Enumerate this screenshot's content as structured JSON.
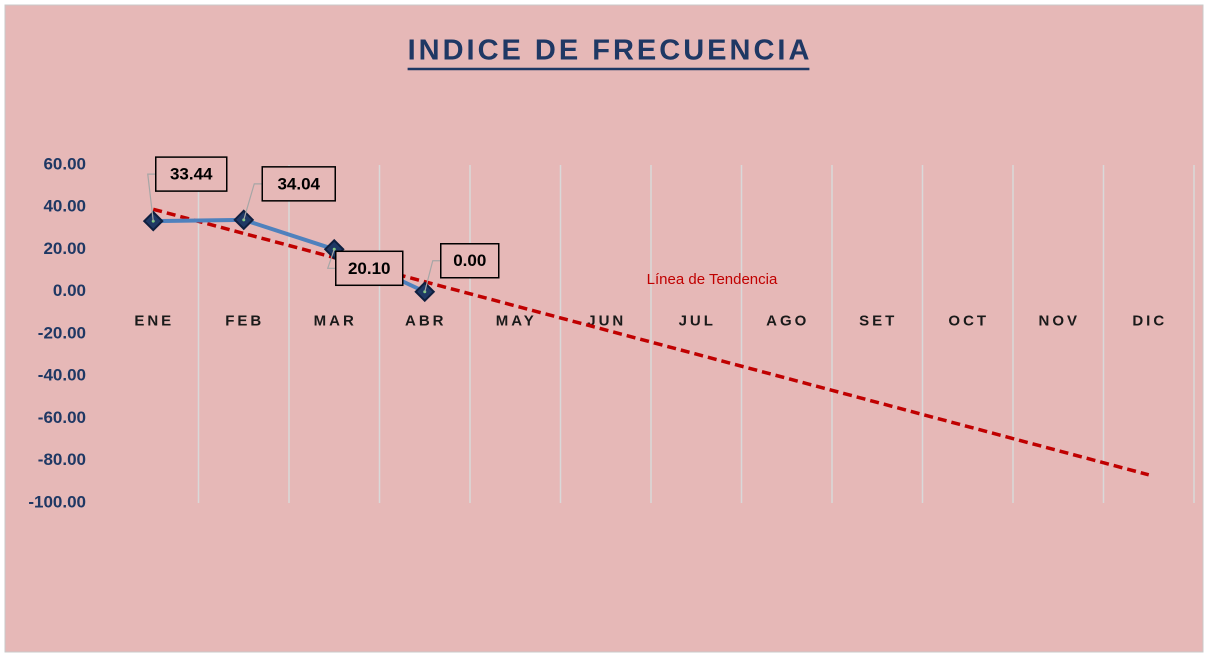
{
  "chart_data": {
    "type": "line",
    "title": "INDICE DE FRECUENCIA",
    "categories": [
      "ENE",
      "FEB",
      "MAR",
      "ABR",
      "MAY",
      "JUN",
      "JUL",
      "AGO",
      "SET",
      "OCT",
      "NOV",
      "DIC"
    ],
    "series": [
      {
        "name": "Indice de Frecuencia",
        "color": "#4f81bd",
        "marker_color": "#1f3864",
        "values": [
          33.44,
          34.04,
          20.1,
          0.0,
          null,
          null,
          null,
          null,
          null,
          null,
          null,
          null
        ],
        "value_labels": [
          "33.44",
          "34.04",
          "20.10",
          "0.00",
          null,
          null,
          null,
          null,
          null,
          null,
          null,
          null
        ]
      }
    ],
    "trend": {
      "label": "Línea de Tendencia",
      "color": "#c00000",
      "start": 39.03,
      "end": -86.65
    },
    "ylim": [
      -100,
      60
    ],
    "yticks": [
      {
        "value": 60,
        "label": "60.00"
      },
      {
        "value": 40,
        "label": "40.00"
      },
      {
        "value": 20,
        "label": "20.00"
      },
      {
        "value": 0,
        "label": "0.00"
      },
      {
        "value": -20,
        "label": "-20.00"
      },
      {
        "value": -40,
        "label": "-40.00"
      },
      {
        "value": -60,
        "label": "-60.00"
      },
      {
        "value": -80,
        "label": "-80.00"
      },
      {
        "value": -100,
        "label": "-100.00"
      }
    ],
    "grid": "vertical"
  }
}
